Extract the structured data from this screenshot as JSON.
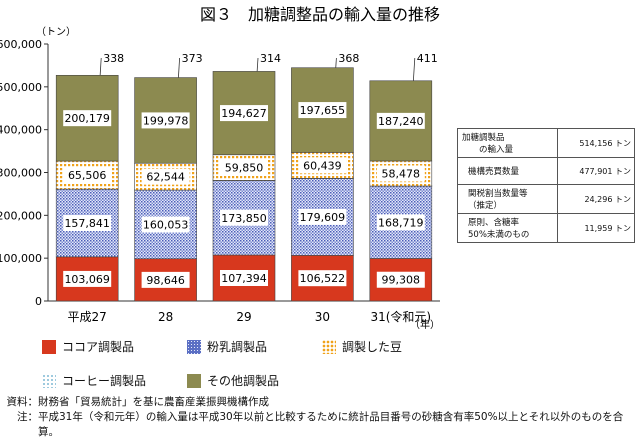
{
  "colors": {
    "cocoa": "#d7381e",
    "milk": "#5b6fc4",
    "beans": "#f0a21a",
    "coffee": "#8fc2d8",
    "other": "#8c8a50"
  },
  "chart_data": {
    "type": "bar",
    "stacked": true,
    "title": "図３　加糖調整品の輸入量の推移",
    "ylabel": "（トン）",
    "xlabel": "（年）",
    "ylim": [
      0,
      600000
    ],
    "yticks": [
      0,
      100000,
      200000,
      300000,
      400000,
      500000,
      600000
    ],
    "ytick_labels": [
      "0",
      "100,000",
      "200,000",
      "300,000",
      "400,000",
      "500,000",
      "600,000"
    ],
    "categories": [
      "平成27",
      "28",
      "29",
      "30",
      "31(令和元)"
    ],
    "series": [
      {
        "name": "ココア調製品",
        "key": "cocoa",
        "values": [
          103069,
          98646,
          107394,
          106522,
          99308
        ]
      },
      {
        "name": "粉乳調製品",
        "key": "milk",
        "values": [
          157841,
          160053,
          173850,
          179609,
          168719
        ]
      },
      {
        "name": "コーヒー調製品",
        "key": "coffee",
        "values": [
          338,
          373,
          314,
          368,
          411
        ]
      },
      {
        "name": "調製した豆",
        "key": "beans",
        "values": [
          65506,
          62544,
          59850,
          60439,
          58478
        ]
      },
      {
        "name": "その他調製品",
        "key": "other",
        "values": [
          200179,
          199978,
          194627,
          197655,
          187240
        ]
      }
    ],
    "grid": false,
    "legend_position": "bottom"
  },
  "side_table": {
    "rows": [
      {
        "label": "加糖調製品\n　　の輸入量",
        "value": "514,156 トン"
      },
      {
        "label": "機構売買数量",
        "value": "477,901 トン"
      },
      {
        "label": "関税割当数量等\n（推定）",
        "value": "24,296 トン"
      },
      {
        "label": "原則、含糖率\n50%未満のもの",
        "value": "11,959 トン"
      }
    ]
  },
  "legend": {
    "items": [
      {
        "label": "ココア調製品",
        "key": "cocoa"
      },
      {
        "label": "粉乳調製品",
        "key": "milk"
      },
      {
        "label": "調製した豆",
        "key": "beans"
      },
      {
        "label": "コーヒー調製品",
        "key": "coffee"
      },
      {
        "label": "その他調製品",
        "key": "other"
      }
    ]
  },
  "notes": {
    "source_head": "資料：",
    "source": "財務省「貿易統計」を基に農畜産業振興機構作成",
    "note_head": "注：",
    "note": "平成31年（令和元年）の輸入量は平成30年以前と比較するために統計品目番号の砂糖含有率50%以上とそれ以外のものを合算。"
  }
}
